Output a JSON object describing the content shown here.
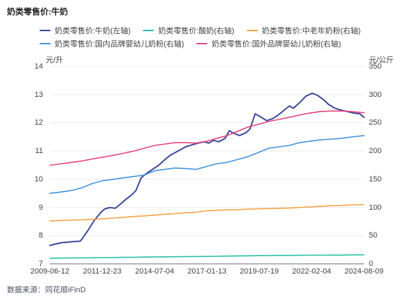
{
  "page": {
    "title": "奶类零售价:牛奶",
    "footer": "数据来源：同花顺iFinD"
  },
  "chart_data": {
    "type": "line",
    "title": "奶类零售价:牛奶",
    "legend_position": "top",
    "grid": "horizontal",
    "colors": {
      "grid_line": "#E9E9F1",
      "axis_line": "#9B9BA8",
      "text": "#404040",
      "footer_text": "#4A5263"
    },
    "left_axis": {
      "unit": "元/升",
      "min": 7,
      "max": 14,
      "ticks": [
        14,
        13,
        12,
        11,
        10,
        9,
        8,
        7
      ]
    },
    "right_axis": {
      "unit": "元/公斤",
      "min": 0,
      "max": 350,
      "ticks": [
        350,
        300,
        250,
        200,
        150,
        100,
        50,
        0
      ]
    },
    "x_axis": {
      "start_year": 2009.45,
      "end_year": 2024.6,
      "tick_labels": [
        "2009-06-12",
        "2011-12-23",
        "2014-07-04",
        "2017-01-13",
        "2019-07-19",
        "2022-02-04",
        "2024-08-09"
      ]
    },
    "x": [
      2009.45,
      2010.0,
      2010.5,
      2011.0,
      2011.5,
      2012.0,
      2012.5,
      2013.0,
      2013.5,
      2014.0,
      2014.5,
      2015.0,
      2015.5,
      2016.0,
      2016.5,
      2017.0,
      2017.5,
      2018.0,
      2018.5,
      2019.0,
      2019.5,
      2020.0,
      2020.5,
      2021.0,
      2021.5,
      2022.0,
      2022.5,
      2023.0,
      2023.5,
      2024.0,
      2024.6
    ],
    "legend_rows": [
      [
        0,
        1,
        2
      ],
      [
        3,
        4
      ]
    ],
    "series": [
      {
        "name": "奶类零售价:牛奶(左轴)",
        "axis": "left",
        "unit": "元/升",
        "color": "#3A4795",
        "width": 2,
        "points": [
          [
            2009.45,
            7.65
          ],
          [
            2009.7,
            7.7
          ],
          [
            2010.0,
            7.75
          ],
          [
            2010.3,
            7.77
          ],
          [
            2010.6,
            7.79
          ],
          [
            2010.9,
            7.8
          ],
          [
            2011.0,
            7.88
          ],
          [
            2011.3,
            8.2
          ],
          [
            2011.6,
            8.55
          ],
          [
            2011.9,
            8.82
          ],
          [
            2012.1,
            8.95
          ],
          [
            2012.35,
            9.0
          ],
          [
            2012.6,
            8.97
          ],
          [
            2012.9,
            9.15
          ],
          [
            2013.1,
            9.28
          ],
          [
            2013.4,
            9.45
          ],
          [
            2013.6,
            9.6
          ],
          [
            2013.85,
            10.05
          ],
          [
            2014.1,
            10.2
          ],
          [
            2014.4,
            10.35
          ],
          [
            2014.7,
            10.5
          ],
          [
            2015.0,
            10.7
          ],
          [
            2015.25,
            10.85
          ],
          [
            2015.5,
            10.95
          ],
          [
            2015.75,
            11.05
          ],
          [
            2016.0,
            11.15
          ],
          [
            2016.3,
            11.22
          ],
          [
            2016.6,
            11.28
          ],
          [
            2016.9,
            11.33
          ],
          [
            2017.1,
            11.28
          ],
          [
            2017.35,
            11.38
          ],
          [
            2017.6,
            11.33
          ],
          [
            2017.9,
            11.45
          ],
          [
            2018.1,
            11.72
          ],
          [
            2018.35,
            11.62
          ],
          [
            2018.6,
            11.55
          ],
          [
            2018.9,
            11.65
          ],
          [
            2019.1,
            11.78
          ],
          [
            2019.35,
            12.32
          ],
          [
            2019.6,
            12.22
          ],
          [
            2019.9,
            12.08
          ],
          [
            2020.2,
            12.15
          ],
          [
            2020.5,
            12.3
          ],
          [
            2020.8,
            12.48
          ],
          [
            2021.0,
            12.6
          ],
          [
            2021.2,
            12.52
          ],
          [
            2021.5,
            12.72
          ],
          [
            2021.8,
            12.95
          ],
          [
            2022.1,
            13.05
          ],
          [
            2022.35,
            12.98
          ],
          [
            2022.6,
            12.85
          ],
          [
            2022.9,
            12.65
          ],
          [
            2023.2,
            12.52
          ],
          [
            2023.5,
            12.45
          ],
          [
            2023.8,
            12.4
          ],
          [
            2024.1,
            12.35
          ],
          [
            2024.4,
            12.32
          ],
          [
            2024.6,
            12.2
          ]
        ]
      },
      {
        "name": "奶类零售价:酸奶(右轴)",
        "axis": "right",
        "unit": "元/公斤",
        "color": "#25BFA6",
        "width": 1.6,
        "values": [
          10,
          10.2,
          10.4,
          10.6,
          10.8,
          11,
          11.2,
          11.5,
          11.7,
          12,
          12.2,
          12.4,
          12.6,
          12.8,
          13,
          13.2,
          13.5,
          13.7,
          14,
          14.2,
          14.5,
          14.7,
          15,
          15,
          15.2,
          15.3,
          15.4,
          15.5,
          15.5,
          15.8,
          16
        ]
      },
      {
        "name": "奶类零售价:中老年奶粉(右轴)",
        "axis": "right",
        "unit": "元/公斤",
        "color": "#F5A244",
        "width": 1.6,
        "values": [
          76,
          77,
          77.5,
          78,
          79,
          80,
          81,
          82.5,
          84,
          85,
          86.5,
          88,
          89,
          90.5,
          91.5,
          94,
          95,
          95.5,
          96,
          97,
          97.5,
          98,
          98.5,
          99,
          100,
          101,
          102,
          103,
          103.5,
          104.5,
          105
        ]
      },
      {
        "name": "奶类零售价:国内品牌婴幼儿奶粉(右轴)",
        "axis": "right",
        "unit": "元/公斤",
        "color": "#4292DB",
        "width": 1.6,
        "values": [
          125,
          127.5,
          130,
          135,
          142.5,
          147.5,
          150,
          152.5,
          155,
          157.5,
          165,
          167.5,
          170,
          169,
          167.5,
          172.5,
          177.5,
          180,
          185,
          190,
          197.5,
          205,
          207.5,
          210,
          215,
          217.5,
          220,
          221,
          222.5,
          225,
          227.5
        ]
      },
      {
        "name": "奶类零售价:国外品牌婴幼儿奶粉(右轴)",
        "axis": "right",
        "unit": "元/公斤",
        "color": "#E8417F",
        "width": 1.6,
        "values": [
          175,
          177.5,
          180,
          182.5,
          186,
          189,
          192.5,
          196,
          200,
          205,
          210,
          212.5,
          215,
          215,
          214,
          217.5,
          222.5,
          227.5,
          235,
          242.5,
          247.5,
          252.5,
          256,
          260,
          264,
          267.5,
          270,
          271,
          271,
          270,
          268
        ]
      }
    ]
  }
}
